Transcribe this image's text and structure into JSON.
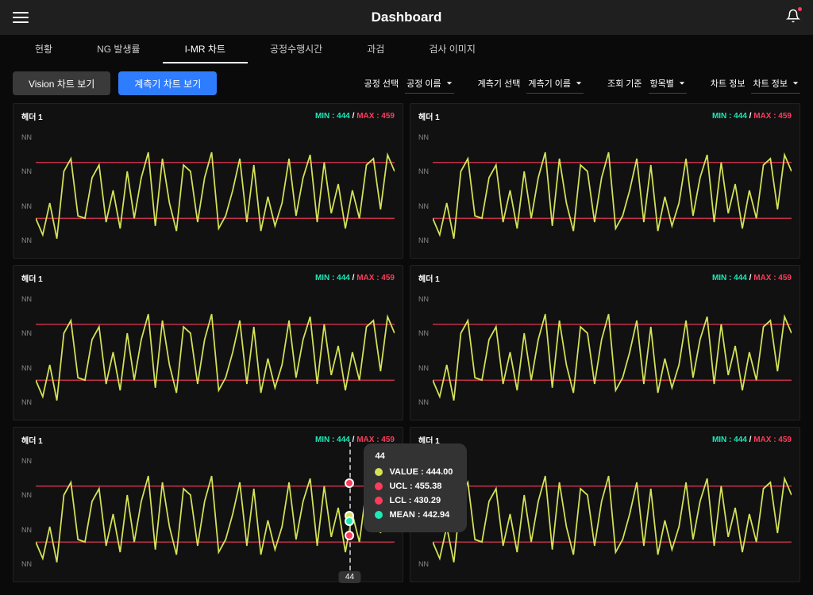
{
  "header": {
    "title": "Dashboard"
  },
  "tabs": [
    {
      "label": "현황",
      "active": false
    },
    {
      "label": "NG 발생률",
      "active": false
    },
    {
      "label": "I-MR 차트",
      "active": true
    },
    {
      "label": "공정수행시간",
      "active": false
    },
    {
      "label": "과검",
      "active": false
    },
    {
      "label": "검사 이미지",
      "active": false
    }
  ],
  "buttons": {
    "vision": "Vision 차트 보기",
    "gauge": "계측기 차트 보기"
  },
  "selectors": [
    {
      "label": "공정 선택",
      "value": "공정 이름"
    },
    {
      "label": "계측기 선택",
      "value": "계측기 이름"
    },
    {
      "label": "조회 기준",
      "value": "항목별"
    },
    {
      "label": "차트 정보",
      "value": "차트 정보"
    }
  ],
  "chart_template": {
    "title": "헤더 1",
    "min_label": "MIN : 444",
    "max_label": "MAX : 459",
    "y_ticks": [
      "NN",
      "NN",
      "NN",
      "NN"
    ],
    "line_color": "#d4e157",
    "ucl_color": "#ff3b5c",
    "lcl_color": "#ff3b5c",
    "grid_bg": "#111",
    "ucl_y": 0.28,
    "lcl_y": 0.72,
    "series": [
      0.72,
      0.85,
      0.6,
      0.88,
      0.35,
      0.25,
      0.7,
      0.72,
      0.4,
      0.3,
      0.75,
      0.5,
      0.8,
      0.35,
      0.72,
      0.4,
      0.2,
      0.78,
      0.25,
      0.6,
      0.82,
      0.3,
      0.35,
      0.75,
      0.4,
      0.2,
      0.8,
      0.7,
      0.5,
      0.25,
      0.75,
      0.3,
      0.82,
      0.55,
      0.78,
      0.6,
      0.25,
      0.7,
      0.4,
      0.22,
      0.75,
      0.28,
      0.68,
      0.45,
      0.8,
      0.5,
      0.72,
      0.3,
      0.25,
      0.65,
      0.22,
      0.35
    ]
  },
  "tooltip": {
    "x_label": "44",
    "rows": [
      {
        "color": "#d4e157",
        "label": "VALUE : 444.00"
      },
      {
        "color": "#ff3b5c",
        "label": "UCL : 455.38"
      },
      {
        "color": "#ff3b5c",
        "label": "LCL : 430.29"
      },
      {
        "color": "#1de9b6",
        "label": "MEAN : 442.94"
      }
    ],
    "markers": [
      {
        "y": 0.28,
        "color": "#ff3b5c"
      },
      {
        "y": 0.55,
        "color": "#d4e157"
      },
      {
        "y": 0.6,
        "color": "#1de9b6"
      },
      {
        "y": 0.72,
        "color": "#ff3b5c"
      }
    ]
  }
}
